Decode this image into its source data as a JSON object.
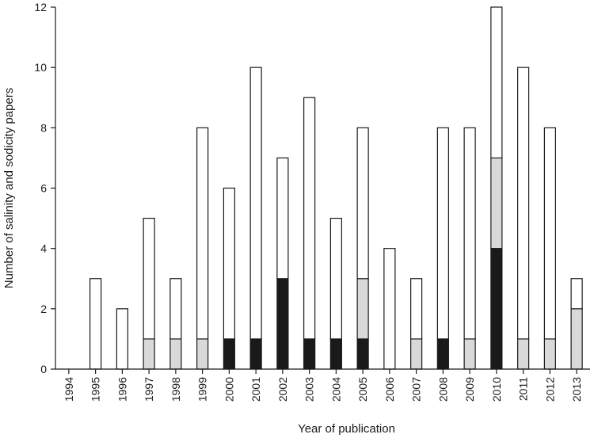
{
  "chart_data": {
    "type": "bar",
    "stacked": true,
    "title": "",
    "xlabel": "Year of publication",
    "ylabel": "Number of salinity and sodicity papers",
    "ylim": [
      0,
      12
    ],
    "yticks": [
      0,
      2,
      4,
      6,
      8,
      10,
      12
    ],
    "grid": false,
    "legend": "none",
    "categories": [
      "1994",
      "1995",
      "1996",
      "1997",
      "1998",
      "1999",
      "2000",
      "2001",
      "2002",
      "2003",
      "2004",
      "2005",
      "2006",
      "2007",
      "2008",
      "2009",
      "2010",
      "2011",
      "2012",
      "2013"
    ],
    "series": [
      {
        "color": "#1a1a1a",
        "values": [
          0,
          0,
          0,
          0,
          0,
          0,
          1,
          1,
          3,
          1,
          1,
          1,
          0,
          0,
          1,
          0,
          4,
          0,
          0,
          0
        ]
      },
      {
        "color": "#d9d9d9",
        "values": [
          0,
          0,
          0,
          1,
          1,
          1,
          0,
          0,
          0,
          0,
          0,
          2,
          0,
          1,
          0,
          1,
          3,
          1,
          1,
          2
        ]
      },
      {
        "color": "#ffffff",
        "values": [
          0,
          3,
          2,
          4,
          2,
          7,
          5,
          9,
          4,
          8,
          4,
          5,
          4,
          2,
          7,
          7,
          5,
          9,
          7,
          1
        ]
      }
    ]
  }
}
